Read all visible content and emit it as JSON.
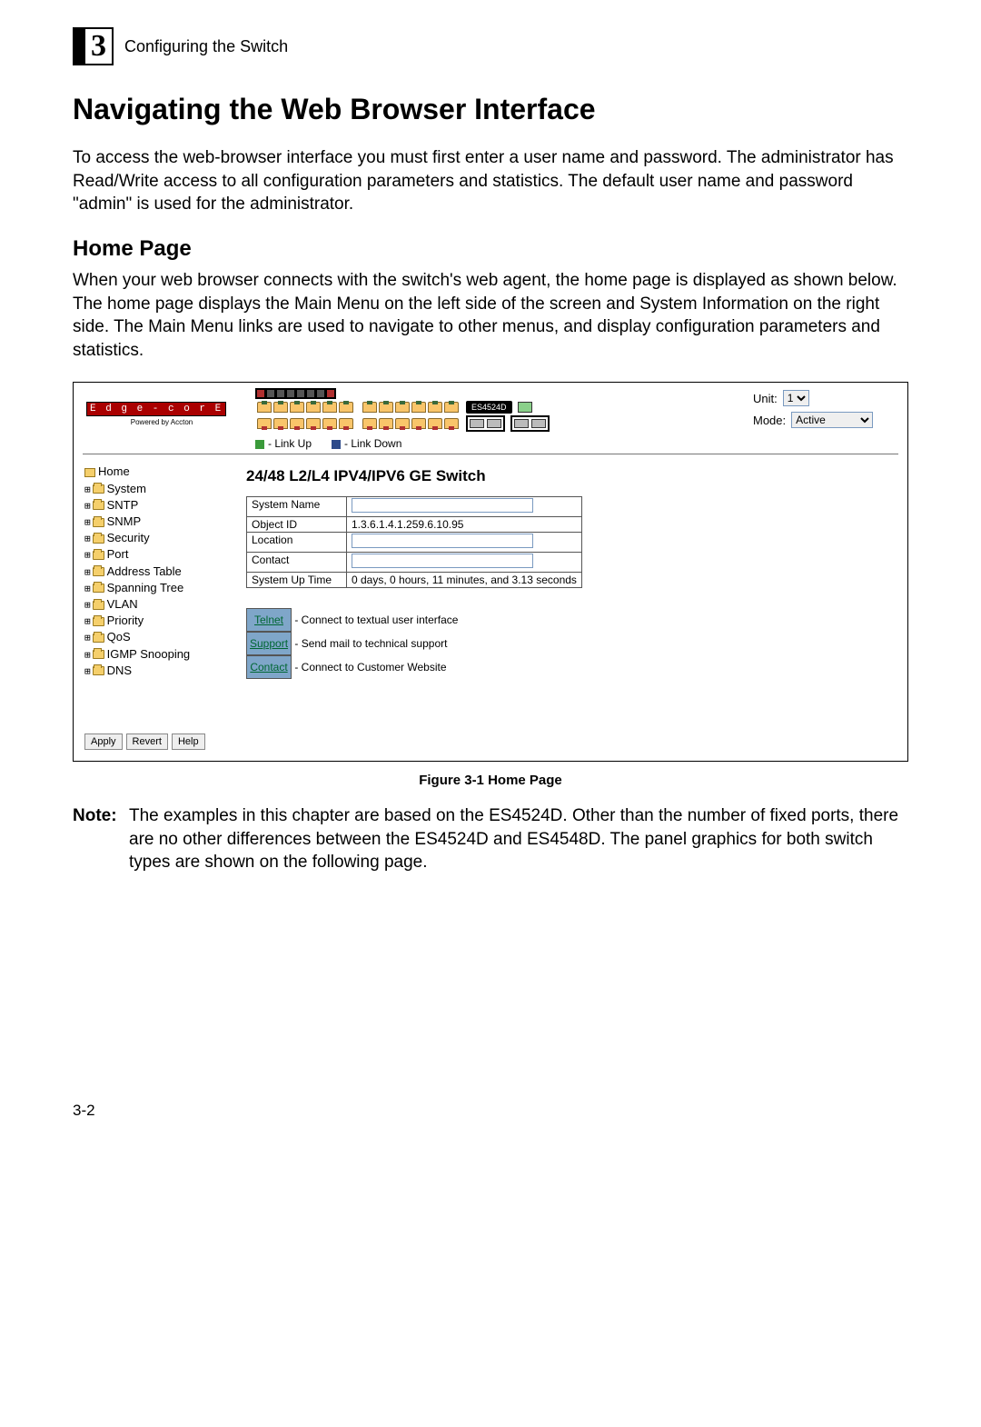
{
  "header": {
    "chapter_num": "3",
    "chapter_text": "Configuring the Switch"
  },
  "title": "Navigating the Web Browser Interface",
  "intro": "To access the web-browser interface you must first enter a user name and password. The administrator has Read/Write access to all configuration parameters and statistics. The default user name and password \"admin\" is used for the administrator.",
  "section_home": {
    "heading": "Home Page",
    "body": "When your web browser connects with the switch's web agent, the home page is displayed as shown below. The home page displays the Main Menu on the left side of the screen and System Information on the right side. The Main Menu links are used to navigate to other menus, and display configuration parameters and statistics."
  },
  "screenshot": {
    "logo_text": "E d g e - c o r E",
    "logo_sub": "Powered by Accton",
    "model": "ES4524D",
    "legend_up": "- Link Up",
    "legend_down": "- Link Down",
    "legend_up_color": "#3a9a3a",
    "legend_down_color": "#2e4a8a",
    "unit_label": "Unit:",
    "unit_value": "1",
    "mode_label": "Mode:",
    "mode_value": "Active",
    "tree": [
      "Home",
      "System",
      "SNTP",
      "SNMP",
      "Security",
      "Port",
      "Address Table",
      "Spanning Tree",
      "VLAN",
      "Priority",
      "QoS",
      "IGMP Snooping",
      "DNS"
    ],
    "buttons": {
      "apply": "Apply",
      "revert": "Revert",
      "help": "Help"
    },
    "main_title": "24/48 L2/L4 IPV4/IPV6 GE Switch",
    "info_rows": [
      {
        "label": "System Name",
        "value": "",
        "input": true
      },
      {
        "label": "Object ID",
        "value": "1.3.6.1.4.1.259.6.10.95",
        "input": false
      },
      {
        "label": "Location",
        "value": "",
        "input": true
      },
      {
        "label": "Contact",
        "value": "",
        "input": true
      },
      {
        "label": "System Up Time",
        "value": "0 days, 0 hours, 11 minutes, and 3.13 seconds",
        "input": false
      }
    ],
    "links": [
      {
        "btn": "Telnet",
        "desc": "- Connect to textual user interface"
      },
      {
        "btn": "Support",
        "desc": "- Send mail to technical support"
      },
      {
        "btn": "Contact",
        "desc": "- Connect to Customer Website"
      }
    ]
  },
  "figure_caption": "Figure 3-1  Home Page",
  "note": {
    "label": "Note:",
    "text": "The examples in this chapter are based on the ES4524D. Other than the number of fixed ports, there are no other differences between the ES4524D and ES4548D. The panel graphics for both switch types are shown on the following page."
  },
  "page_number": "3-2"
}
